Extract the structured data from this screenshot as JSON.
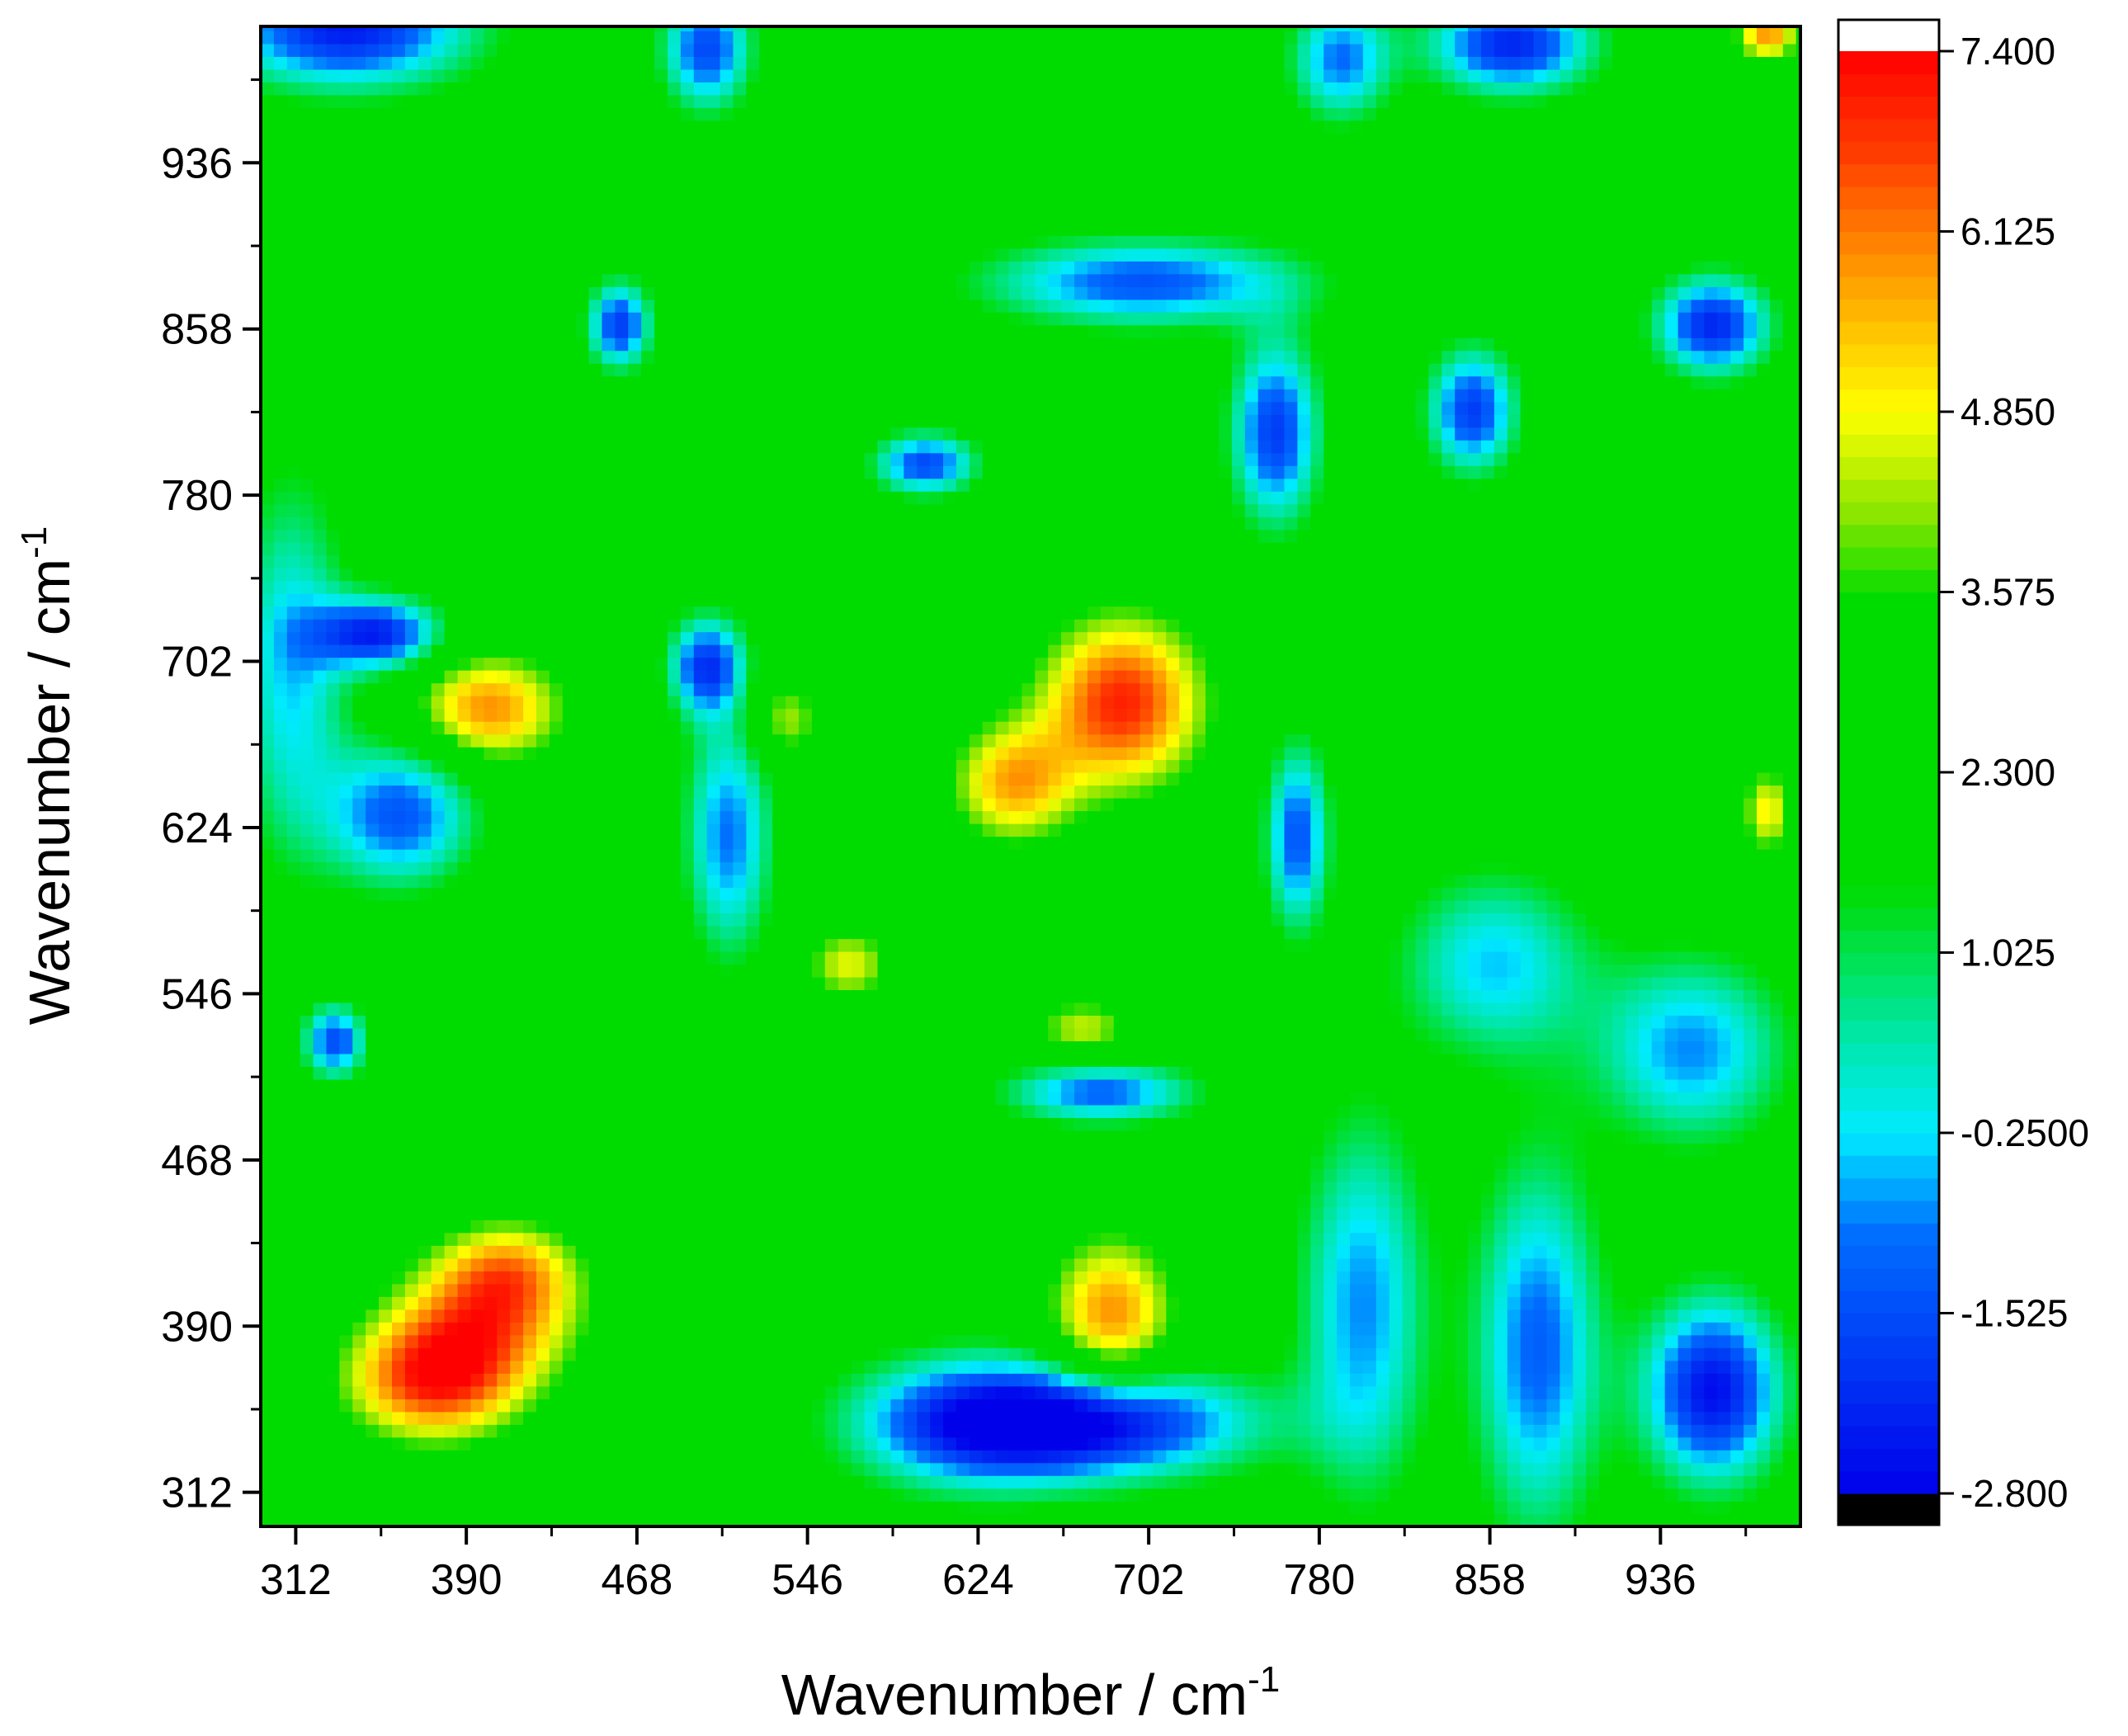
{
  "chart_data": {
    "type": "heatmap",
    "title": "",
    "xlabel": "Wavenumber / cm",
    "xlabel_sup": "-1",
    "ylabel": "Wavenumber / cm",
    "ylabel_sup": "-1",
    "x_ticks": [
      312,
      390,
      468,
      546,
      624,
      702,
      780,
      858,
      936
    ],
    "y_ticks": [
      312,
      390,
      468,
      546,
      624,
      702,
      780,
      858,
      936
    ],
    "xlim": [
      296,
      1000
    ],
    "ylim": [
      296,
      1000
    ],
    "colorbar": {
      "ticks": [
        7.4,
        6.125,
        4.85,
        3.575,
        2.3,
        1.025,
        -0.25,
        -1.525,
        -2.8
      ],
      "tick_labels": [
        "7.400",
        "6.125",
        "4.850",
        "3.575",
        "2.300",
        "1.025",
        "-0.2500",
        "-1.525",
        "-2.800"
      ],
      "range": [
        -2.8,
        7.4
      ],
      "over_color": "#ffffff",
      "under_color": "#000000"
    },
    "background_value": 2.3,
    "blobs": [
      {
        "x": 375,
        "y": 365,
        "value": 6.8,
        "sx": 28,
        "sy": 20
      },
      {
        "x": 400,
        "y": 395,
        "value": 5.6,
        "sx": 30,
        "sy": 22
      },
      {
        "x": 410,
        "y": 418,
        "value": 4.6,
        "sx": 22,
        "sy": 16
      },
      {
        "x": 400,
        "y": 680,
        "value": 6.0,
        "sx": 24,
        "sy": 18
      },
      {
        "x": 690,
        "y": 683,
        "value": 7.0,
        "sx": 26,
        "sy": 28
      },
      {
        "x": 640,
        "y": 645,
        "value": 5.6,
        "sx": 20,
        "sy": 20
      },
      {
        "x": 685,
        "y": 395,
        "value": 6.0,
        "sx": 20,
        "sy": 26
      },
      {
        "x": 565,
        "y": 560,
        "value": 4.7,
        "sx": 14,
        "sy": 12
      },
      {
        "x": 672,
        "y": 530,
        "value": 4.5,
        "sx": 16,
        "sy": 10
      },
      {
        "x": 536,
        "y": 675,
        "value": 4.4,
        "sx": 12,
        "sy": 14
      },
      {
        "x": 985,
        "y": 632,
        "value": 5.0,
        "sx": 8,
        "sy": 14
      },
      {
        "x": 985,
        "y": 998,
        "value": 6.0,
        "sx": 10,
        "sy": 10
      },
      {
        "x": 335,
        "y": 1000,
        "value": -2.4,
        "sx": 40,
        "sy": 20
      },
      {
        "x": 310,
        "y": 700,
        "value": -0.4,
        "sx": 18,
        "sy": 60
      },
      {
        "x": 360,
        "y": 630,
        "value": -1.4,
        "sx": 24,
        "sy": 24
      },
      {
        "x": 350,
        "y": 715,
        "value": -2.2,
        "sx": 20,
        "sy": 12
      },
      {
        "x": 500,
        "y": 700,
        "value": -1.8,
        "sx": 12,
        "sy": 16
      },
      {
        "x": 510,
        "y": 620,
        "value": -1.0,
        "sx": 14,
        "sy": 40
      },
      {
        "x": 680,
        "y": 345,
        "value": -2.4,
        "sx": 50,
        "sy": 18
      },
      {
        "x": 620,
        "y": 345,
        "value": -1.2,
        "sx": 40,
        "sy": 22
      },
      {
        "x": 960,
        "y": 360,
        "value": -2.6,
        "sx": 22,
        "sy": 30
      },
      {
        "x": 880,
        "y": 380,
        "value": -1.2,
        "sx": 20,
        "sy": 60
      },
      {
        "x": 800,
        "y": 400,
        "value": -0.8,
        "sx": 20,
        "sy": 60
      },
      {
        "x": 960,
        "y": 860,
        "value": -2.2,
        "sx": 18,
        "sy": 16
      },
      {
        "x": 868,
        "y": 992,
        "value": -2.2,
        "sx": 26,
        "sy": 16
      },
      {
        "x": 850,
        "y": 820,
        "value": -1.8,
        "sx": 14,
        "sy": 20
      },
      {
        "x": 760,
        "y": 810,
        "value": -1.8,
        "sx": 14,
        "sy": 30
      },
      {
        "x": 460,
        "y": 860,
        "value": -1.8,
        "sx": 10,
        "sy": 14
      },
      {
        "x": 600,
        "y": 795,
        "value": -1.6,
        "sx": 16,
        "sy": 10
      },
      {
        "x": 700,
        "y": 880,
        "value": -1.4,
        "sx": 50,
        "sy": 14
      },
      {
        "x": 500,
        "y": 990,
        "value": -1.6,
        "sx": 14,
        "sy": 20
      },
      {
        "x": 790,
        "y": 985,
        "value": -1.0,
        "sx": 16,
        "sy": 20
      },
      {
        "x": 680,
        "y": 500,
        "value": -1.2,
        "sx": 30,
        "sy": 10
      },
      {
        "x": 330,
        "y": 524,
        "value": -1.6,
        "sx": 10,
        "sy": 12
      },
      {
        "x": 770,
        "y": 620,
        "value": -1.4,
        "sx": 10,
        "sy": 30
      },
      {
        "x": 860,
        "y": 560,
        "value": -0.4,
        "sx": 30,
        "sy": 30
      },
      {
        "x": 950,
        "y": 520,
        "value": -0.8,
        "sx": 30,
        "sy": 30
      },
      {
        "x": 420,
        "y": 560,
        "value": 2.6,
        "sx": 60,
        "sy": 40
      },
      {
        "x": 600,
        "y": 470,
        "value": 2.4,
        "sx": 40,
        "sy": 30
      }
    ]
  }
}
